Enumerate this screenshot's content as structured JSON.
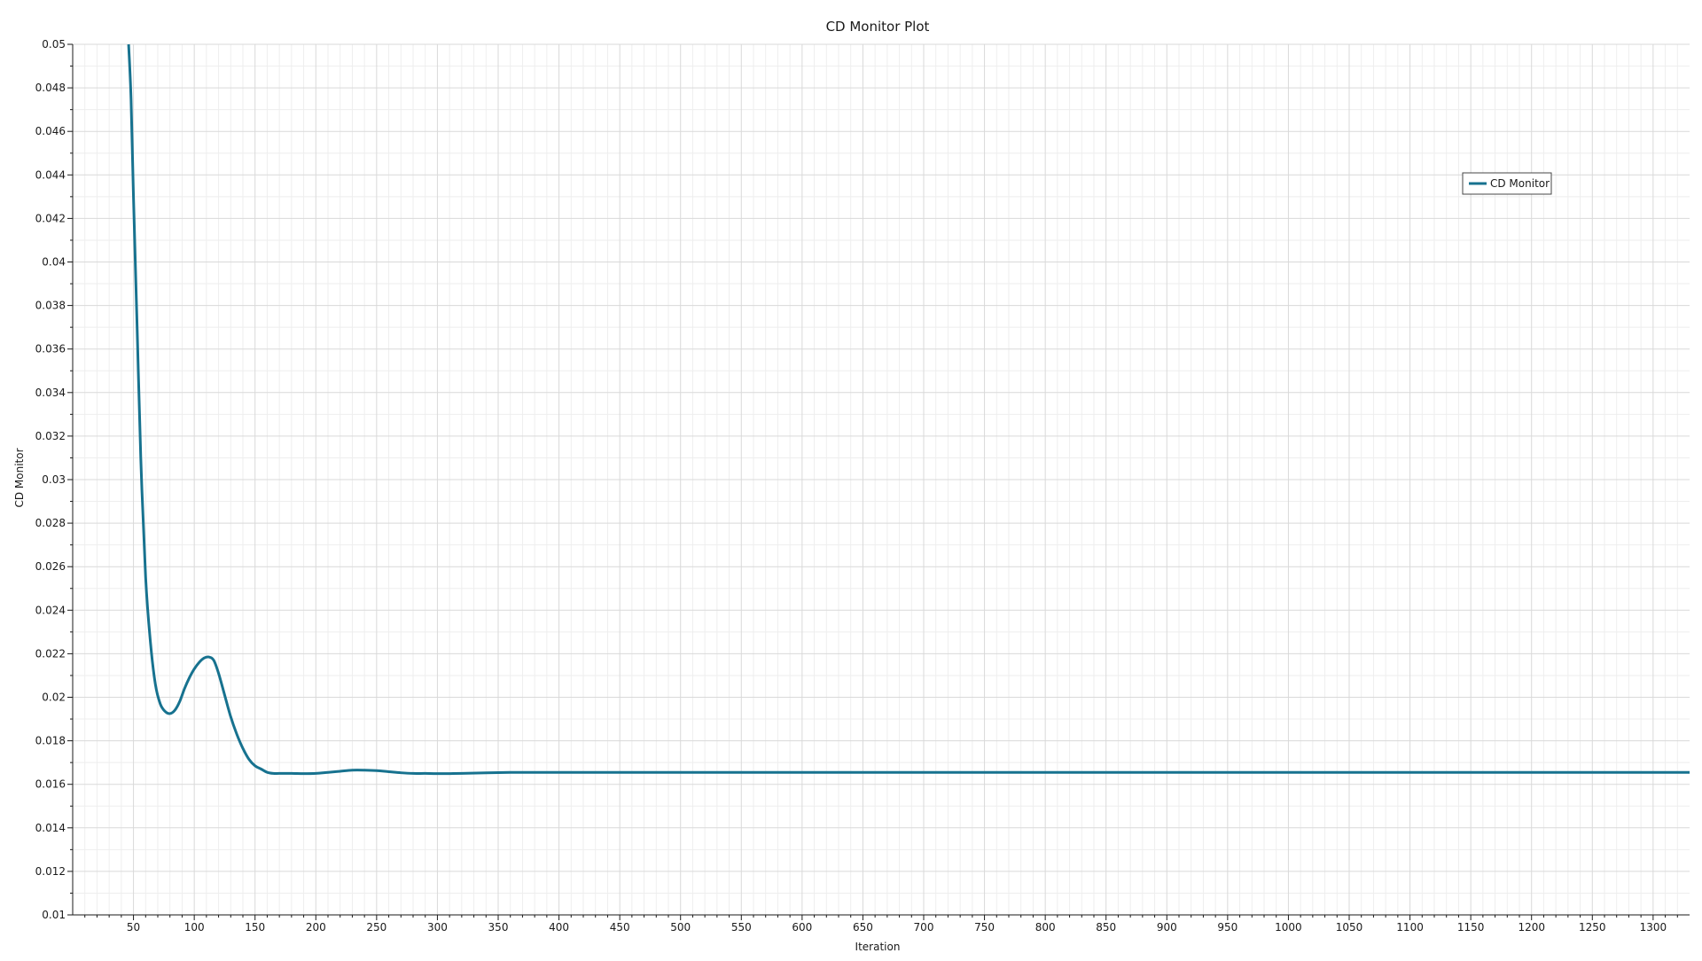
{
  "chart_data": {
    "type": "line",
    "title": "CD Monitor Plot",
    "xlabel": "Iteration",
    "ylabel": "CD Monitor",
    "xlim": [
      0,
      1330
    ],
    "ylim": [
      0.01,
      0.05
    ],
    "grid": true,
    "legend_placement": "top-right",
    "x_ticks": [
      50,
      100,
      150,
      200,
      250,
      300,
      350,
      400,
      450,
      500,
      550,
      600,
      650,
      700,
      750,
      800,
      850,
      900,
      950,
      1000,
      1050,
      1100,
      1150,
      1200,
      1250,
      1300
    ],
    "x_tick_labels": [
      "50",
      "100",
      "150",
      "200",
      "250",
      "300",
      "350",
      "400",
      "450",
      "500",
      "550",
      "600",
      "650",
      "700",
      "750",
      "800",
      "850",
      "900",
      "950",
      "1000",
      "1050",
      "1100",
      "1150",
      "1200",
      "1250",
      "1300"
    ],
    "y_ticks": [
      0.01,
      0.012,
      0.014,
      0.016,
      0.018,
      0.02,
      0.022,
      0.024,
      0.026,
      0.028,
      0.03,
      0.032,
      0.034,
      0.036,
      0.038,
      0.04,
      0.042,
      0.044,
      0.046,
      0.048,
      0.05
    ],
    "y_tick_labels": [
      "0.01",
      "0.012",
      "0.014",
      "0.016",
      "0.018",
      "0.02",
      "0.022",
      "0.024",
      "0.026",
      "0.028",
      "0.03",
      "0.032",
      "0.034",
      "0.036",
      "0.038",
      "0.04",
      "0.042",
      "0.044",
      "0.046",
      "0.048",
      "0.05"
    ],
    "series": [
      {
        "name": "CD Monitor",
        "color": "#17728f",
        "x": [
          46,
          48,
          50,
          53,
          56,
          60,
          64,
          68,
          72,
          76,
          80,
          84,
          88,
          92,
          96,
          100,
          104,
          108,
          112,
          116,
          120,
          125,
          130,
          135,
          140,
          145,
          150,
          155,
          160,
          165,
          170,
          180,
          190,
          200,
          210,
          220,
          230,
          240,
          250,
          260,
          270,
          280,
          290,
          300,
          320,
          340,
          360,
          380,
          400,
          450,
          500,
          600,
          700,
          800,
          900,
          1000,
          1100,
          1200,
          1300,
          1330
        ],
        "y": [
          0.05,
          0.0475,
          0.043,
          0.037,
          0.031,
          0.0255,
          0.0225,
          0.0206,
          0.0197,
          0.01935,
          0.01925,
          0.0194,
          0.0198,
          0.0204,
          0.0209,
          0.0213,
          0.0216,
          0.0218,
          0.02185,
          0.0217,
          0.0211,
          0.0201,
          0.0191,
          0.0183,
          0.01765,
          0.01715,
          0.01685,
          0.0167,
          0.01655,
          0.0165,
          0.0165,
          0.0165,
          0.01649,
          0.0165,
          0.01655,
          0.0166,
          0.01665,
          0.01665,
          0.01663,
          0.01658,
          0.01653,
          0.0165,
          0.0165,
          0.01649,
          0.0165,
          0.01653,
          0.01655,
          0.01655,
          0.01655,
          0.01655,
          0.01655,
          0.01655,
          0.01655,
          0.01655,
          0.01655,
          0.01655,
          0.01655,
          0.01655,
          0.01655,
          0.01655
        ]
      }
    ]
  }
}
